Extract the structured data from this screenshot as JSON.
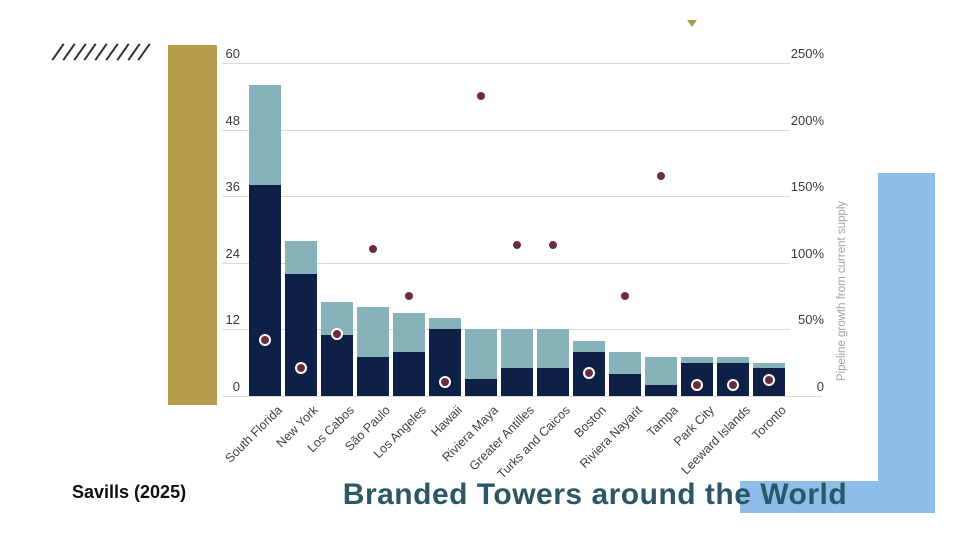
{
  "slide": {
    "title": "Branded Towers around the World",
    "source": "Savills (2025)"
  },
  "colors": {
    "bar_dark": "#0e2045",
    "bar_light": "#88b2b9",
    "dot": "#682c43",
    "gold": "#b59b4b",
    "light_blue": "#8fbde9",
    "title_text": "#2b5766",
    "gridline": "#dadada"
  },
  "chart_data": {
    "type": "bar",
    "subtype": "stacked-column-with-scatter-overlay",
    "title": "Branded Towers around the World",
    "categories": [
      "South Florida",
      "New York",
      "Los Cabos",
      "São Paulo",
      "Los Angeles",
      "Hawaii",
      "Riviera Maya",
      "Greater Antilles",
      "Turks and Caicos",
      "Boston",
      "Riviera Nayarit",
      "Tampa",
      "Park City",
      "Leeward Islands",
      "Toronto"
    ],
    "series": [
      {
        "name": "stacked_dark_segment",
        "type": "bar",
        "axis": "left",
        "values": [
          38,
          22,
          11,
          7,
          8,
          12,
          3,
          5,
          5,
          8,
          4,
          2,
          6,
          6,
          5
        ]
      },
      {
        "name": "stacked_light_segment",
        "type": "bar",
        "axis": "left",
        "values": [
          18,
          6,
          6,
          9,
          7,
          2,
          9,
          7,
          7,
          2,
          4,
          5,
          1,
          1,
          1
        ]
      },
      {
        "name": "pipeline_growth_pct",
        "type": "scatter",
        "axis": "right",
        "values": [
          42,
          21,
          46,
          110,
          75,
          10,
          225,
          113,
          113,
          17,
          75,
          165,
          8,
          8,
          12
        ]
      }
    ],
    "left_axis": {
      "ticks": [
        0,
        12,
        24,
        36,
        48,
        60
      ],
      "min": 0,
      "max": 60
    },
    "right_axis": {
      "label": "Pipeline growth from current supply",
      "ticks": [
        "0",
        "50%",
        "100%",
        "150%",
        "200%",
        "250%"
      ],
      "min_pct": 0,
      "max_pct": 250
    },
    "grid": true,
    "legend": false
  }
}
